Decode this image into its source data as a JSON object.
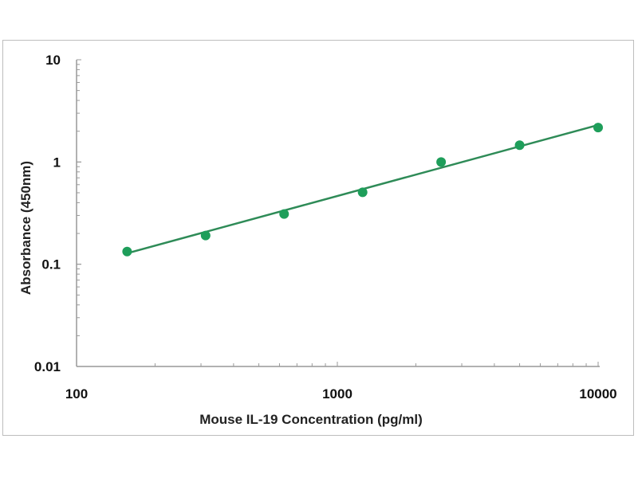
{
  "chart_data": {
    "type": "scatter",
    "title": "",
    "xlabel": "Mouse IL-19 Concentration (pg/ml)",
    "ylabel": "Absorbance (450nm)",
    "xscale": "log",
    "yscale": "log",
    "xlim": [
      100,
      10000
    ],
    "ylim": [
      0.01,
      10
    ],
    "xticks": [
      "100",
      "1000",
      "10000"
    ],
    "yticks": [
      "0.01",
      "0.1",
      "1",
      "10"
    ],
    "grid": false,
    "legend": "none",
    "colors": {
      "points": "#1e9e5a",
      "line": "#2e8b57",
      "axis": "#999999"
    },
    "series": [
      {
        "x": [
          156.25,
          312.5,
          625,
          1250,
          2500,
          5000,
          10000
        ],
        "y": [
          0.133,
          0.191,
          0.31,
          0.505,
          1.0,
          1.46,
          2.17
        ]
      }
    ],
    "fit_line": {
      "x": [
        156.25,
        10000
      ],
      "y": [
        0.128,
        2.3
      ]
    }
  }
}
